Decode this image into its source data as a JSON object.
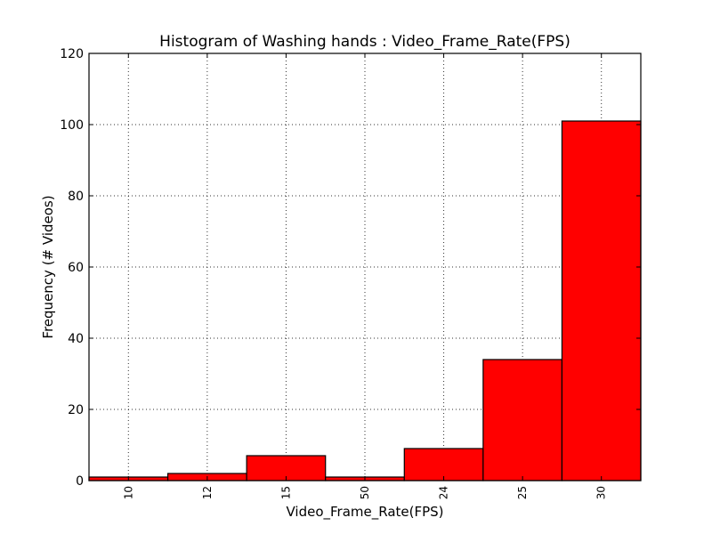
{
  "chart_data": {
    "type": "bar",
    "title": "Histogram of Washing hands : Video_Frame_Rate(FPS)",
    "xlabel": "Video_Frame_Rate(FPS)",
    "ylabel": "Frequency (# Videos)",
    "categories": [
      "10",
      "12",
      "15",
      "50",
      "24",
      "25",
      "30"
    ],
    "values": [
      1,
      2,
      7,
      1,
      9,
      34,
      101
    ],
    "ylim": [
      0,
      120
    ],
    "yticks": [
      "0",
      "20",
      "40",
      "60",
      "80",
      "100",
      "120"
    ],
    "grid": true,
    "bar_color": "#ff0000"
  }
}
